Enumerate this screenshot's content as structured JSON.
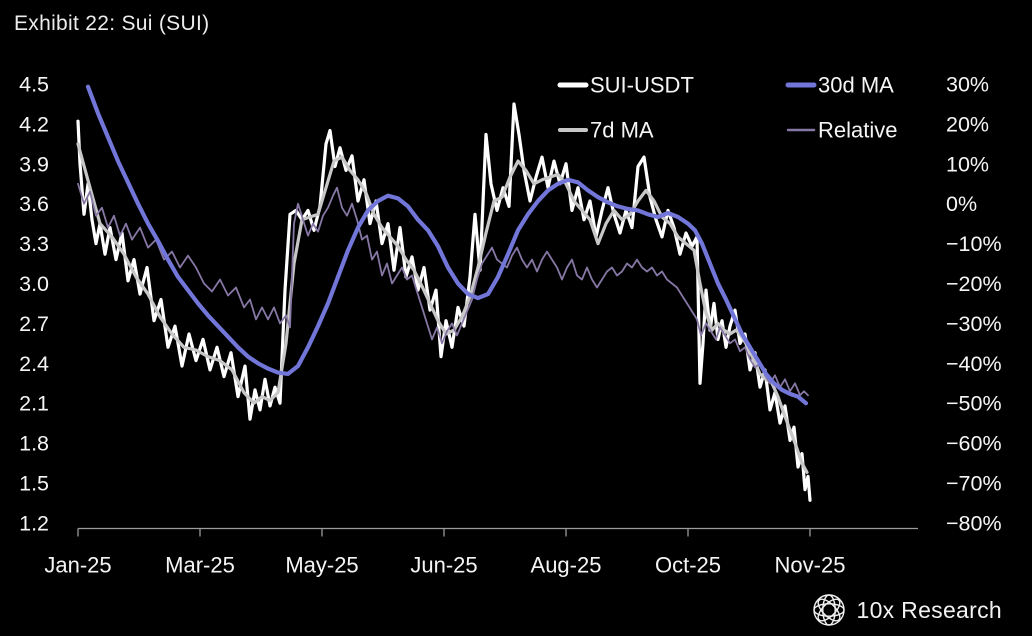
{
  "title": "Exhibit 22: Sui (SUI)",
  "footer": {
    "brand_name": "10x Research",
    "logo": "globe-wireframe-icon"
  },
  "colors": {
    "background": "#000000",
    "price_line": "#ffffff",
    "ma7_line": "#c7c7c7",
    "ma30_line": "#7276d8",
    "relative_line": "#8677a4",
    "axis": "#9b9b9b",
    "label_text": "#f5f5f5",
    "title_text": "#ececec"
  },
  "legend": [
    {
      "label": "SUI-USDT",
      "color": "#ffffff",
      "thickness": 5
    },
    {
      "label": "30d MA",
      "color": "#7276d8",
      "thickness": 5
    },
    {
      "label": "7d MA",
      "color": "#c7c7c7",
      "thickness": 4
    },
    {
      "label": "Relative",
      "color": "#8677a4",
      "thickness": 2.5
    }
  ],
  "chart_data": {
    "type": "line",
    "title": "Exhibit 22: Sui (SUI)",
    "grid": false,
    "legend_position": "top-right",
    "x_tick_labels": [
      "Jan-25",
      "Mar-25",
      "May-25",
      "Jun-25",
      "Aug-25",
      "Oct-25",
      "Nov-25"
    ],
    "left_axis": {
      "ticks": [
        "4.5",
        "4.2",
        "3.9",
        "3.6",
        "3.3",
        "3.0",
        "2.7",
        "2.4",
        "2.1",
        "1.8",
        "1.5",
        "1.2"
      ],
      "top": 4.5,
      "step": 0.3
    },
    "right_axis": {
      "ticks": [
        "30%",
        "20%",
        "10%",
        "0%",
        "−10%",
        "−20%",
        "−30%",
        "−40%",
        "−50%",
        "−60%",
        "−70%",
        "−80%"
      ],
      "top": 30,
      "step": 10
    },
    "x_span": 732,
    "series": [
      {
        "name": "SUI-USDT",
        "axis": "left",
        "color": "#ffffff",
        "width": 3.2,
        "x": [
          0,
          2,
          6,
          10,
          14,
          18,
          22,
          27,
          32,
          38,
          44,
          50,
          56,
          62,
          69,
          76,
          83,
          90,
          97,
          104,
          111,
          118,
          125,
          132,
          139,
          146,
          153,
          160,
          167,
          172,
          177,
          182,
          187,
          192,
          197,
          202,
          207,
          212,
          218,
          224,
          230,
          236,
          242,
          248,
          252,
          257,
          262,
          268,
          274,
          280,
          286,
          292,
          298,
          304,
          310,
          316,
          322,
          328,
          334,
          340,
          346,
          352,
          358,
          363,
          368,
          374,
          380,
          386,
          392,
          397,
          402,
          408,
          413,
          419,
          425,
          431,
          436,
          441,
          446,
          452,
          458,
          464,
          470,
          476,
          482,
          488,
          494,
          500,
          506,
          512,
          518,
          524,
          530,
          536,
          542,
          548,
          554,
          560,
          566,
          572,
          578,
          584,
          590,
          596,
          602,
          608,
          614,
          619,
          622,
          625,
          628,
          632,
          636,
          640,
          644,
          648,
          652,
          657,
          662,
          667,
          672,
          677,
          682,
          687,
          692,
          697,
          702,
          707,
          712,
          716,
          720,
          724,
          727,
          730,
          732
        ],
        "v": [
          4.22,
          3.9,
          3.52,
          3.75,
          3.48,
          3.3,
          3.45,
          3.22,
          3.42,
          3.18,
          3.38,
          3.02,
          3.18,
          2.92,
          3.12,
          2.72,
          2.88,
          2.52,
          2.68,
          2.38,
          2.62,
          2.42,
          2.58,
          2.35,
          2.52,
          2.3,
          2.48,
          2.15,
          2.38,
          1.98,
          2.2,
          2.05,
          2.28,
          2.08,
          2.22,
          2.1,
          2.95,
          3.52,
          3.55,
          3.48,
          3.55,
          3.4,
          3.58,
          4.05,
          4.15,
          3.88,
          4.02,
          3.85,
          3.96,
          3.62,
          3.78,
          3.45,
          3.62,
          3.3,
          3.45,
          3.1,
          3.42,
          3.05,
          3.2,
          2.95,
          3.12,
          2.8,
          2.95,
          2.45,
          2.72,
          2.52,
          2.82,
          2.68,
          3.05,
          3.52,
          3.1,
          4.12,
          3.75,
          3.55,
          3.72,
          3.58,
          4.35,
          4.12,
          3.85,
          3.62,
          3.8,
          3.95,
          3.72,
          3.92,
          3.75,
          3.9,
          3.55,
          3.72,
          3.48,
          3.62,
          3.35,
          3.55,
          3.72,
          3.52,
          3.38,
          3.55,
          3.42,
          3.88,
          3.95,
          3.65,
          3.48,
          3.35,
          3.55,
          3.42,
          3.22,
          3.38,
          3.28,
          3.35,
          2.25,
          2.55,
          2.95,
          2.65,
          2.85,
          2.58,
          2.72,
          2.52,
          2.68,
          2.8,
          2.55,
          2.62,
          2.35,
          2.48,
          2.22,
          2.35,
          2.05,
          2.18,
          1.95,
          2.08,
          1.82,
          1.92,
          1.62,
          1.72,
          1.45,
          1.55,
          1.37
        ]
      },
      {
        "name": "7d MA",
        "axis": "left",
        "color": "#c7c7c7",
        "width": 3.2,
        "x": [
          0,
          12,
          22,
          34,
          46,
          58,
          70,
          82,
          94,
          106,
          118,
          130,
          142,
          154,
          166,
          176,
          184,
          192,
          200,
          208,
          216,
          224,
          232,
          240,
          248,
          256,
          264,
          272,
          280,
          288,
          296,
          304,
          312,
          320,
          328,
          336,
          344,
          352,
          360,
          368,
          376,
          384,
          392,
          400,
          408,
          416,
          424,
          432,
          440,
          448,
          456,
          464,
          472,
          480,
          488,
          496,
          504,
          512,
          520,
          528,
          536,
          544,
          552,
          560,
          568,
          576,
          584,
          592,
          600,
          608,
          616,
          622,
          628,
          634,
          640,
          646,
          652,
          658,
          664,
          670,
          676,
          682,
          688,
          694,
          700,
          706,
          712,
          718,
          724,
          729
        ],
        "v": [
          4.05,
          3.72,
          3.45,
          3.35,
          3.22,
          3.05,
          2.92,
          2.75,
          2.62,
          2.52,
          2.5,
          2.45,
          2.42,
          2.35,
          2.18,
          2.1,
          2.15,
          2.12,
          2.18,
          2.55,
          3.15,
          3.48,
          3.5,
          3.52,
          3.72,
          3.92,
          3.95,
          3.85,
          3.78,
          3.68,
          3.52,
          3.42,
          3.35,
          3.28,
          3.18,
          3.1,
          2.98,
          2.85,
          2.72,
          2.62,
          2.65,
          2.75,
          2.9,
          3.12,
          3.38,
          3.62,
          3.65,
          3.8,
          3.92,
          3.85,
          3.75,
          3.78,
          3.8,
          3.82,
          3.75,
          3.62,
          3.55,
          3.48,
          3.3,
          3.45,
          3.55,
          3.48,
          3.52,
          3.62,
          3.7,
          3.62,
          3.5,
          3.45,
          3.35,
          3.3,
          3.25,
          3.0,
          2.78,
          2.65,
          2.7,
          2.65,
          2.62,
          2.65,
          2.6,
          2.52,
          2.42,
          2.32,
          2.28,
          2.25,
          2.15,
          2.02,
          1.9,
          1.78,
          1.65,
          1.58
        ]
      },
      {
        "name": "Relative",
        "axis": "right",
        "color": "#8677a4",
        "width": 1.8,
        "x": [
          0,
          6,
          12,
          18,
          24,
          30,
          36,
          42,
          48,
          54,
          62,
          70,
          78,
          86,
          94,
          102,
          110,
          118,
          126,
          134,
          142,
          150,
          158,
          166,
          172,
          178,
          184,
          190,
          196,
          202,
          208,
          212,
          216,
          220,
          225,
          230,
          235,
          240,
          245,
          250,
          255,
          259,
          264,
          269,
          274,
          279,
          284,
          289,
          294,
          299,
          304,
          309,
          314,
          319,
          324,
          329,
          334,
          339,
          344,
          349,
          354,
          359,
          364,
          369,
          374,
          379,
          384,
          389,
          394,
          399,
          404,
          409,
          414,
          419,
          424,
          429,
          434,
          439,
          444,
          449,
          454,
          459,
          464,
          469,
          474,
          479,
          484,
          489,
          494,
          499,
          504,
          509,
          514,
          519,
          524,
          529,
          534,
          539,
          544,
          549,
          554,
          559,
          564,
          569,
          574,
          579,
          584,
          589,
          594,
          599,
          604,
          609,
          614,
          619,
          623,
          628,
          633,
          638,
          642,
          647,
          652,
          657,
          662,
          667,
          672,
          677,
          682,
          687,
          692,
          697,
          702,
          707,
          712,
          717,
          722,
          726,
          730
        ],
        "v": [
          5,
          0,
          3,
          -3,
          -1,
          -6,
          -3,
          -8,
          -5,
          -9,
          -6,
          -11,
          -9,
          -14,
          -12,
          -16,
          -13,
          -16,
          -20,
          -22,
          -19,
          -23,
          -21,
          -26,
          -24,
          -29,
          -26,
          -29,
          -26,
          -30,
          -28,
          -31,
          -5,
          0,
          -4,
          -8,
          -5,
          -7,
          -3,
          -1,
          2,
          4,
          -1,
          -3,
          0,
          -4,
          -9,
          -8,
          -14,
          -12,
          -18,
          -15,
          -20,
          -18,
          -16,
          -19,
          -18,
          -22,
          -26,
          -30,
          -34,
          -31,
          -35,
          -32,
          -30,
          -33,
          -30,
          -27,
          -24,
          -19,
          -15,
          -13,
          -11,
          -14,
          -15,
          -16,
          -13,
          -11,
          -14,
          -16,
          -14,
          -17,
          -14,
          -12,
          -14,
          -16,
          -19,
          -16,
          -14,
          -18,
          -19,
          -16,
          -19,
          -21,
          -19,
          -17,
          -16,
          -18,
          -17,
          -15,
          -16,
          -14,
          -16,
          -17,
          -16,
          -18,
          -17,
          -19,
          -20,
          -21,
          -23,
          -25,
          -27,
          -29,
          -33,
          -30,
          -32,
          -34,
          -31,
          -33,
          -35,
          -34,
          -37,
          -36,
          -39,
          -41,
          -40,
          -43,
          -45,
          -43,
          -46,
          -44,
          -47,
          -45,
          -48,
          -47,
          -48
        ]
      },
      {
        "name": "30d MA",
        "axis": "left",
        "color": "#7276d8",
        "width": 4.2,
        "x": [
          10,
          20,
          30,
          40,
          50,
          60,
          70,
          80,
          90,
          100,
          110,
          120,
          130,
          140,
          150,
          160,
          170,
          180,
          190,
          200,
          210,
          220,
          230,
          240,
          250,
          260,
          270,
          280,
          290,
          300,
          310,
          320,
          330,
          340,
          350,
          360,
          370,
          380,
          390,
          400,
          410,
          420,
          430,
          440,
          450,
          460,
          470,
          480,
          490,
          500,
          510,
          520,
          530,
          540,
          550,
          560,
          570,
          580,
          590,
          600,
          610,
          617,
          624,
          632,
          640,
          648,
          656,
          664,
          672,
          680,
          688,
          696,
          704,
          712,
          720,
          728
        ],
        "v": [
          4.48,
          4.28,
          4.1,
          3.92,
          3.76,
          3.6,
          3.45,
          3.32,
          3.18,
          3.05,
          2.95,
          2.85,
          2.76,
          2.68,
          2.6,
          2.52,
          2.45,
          2.4,
          2.36,
          2.33,
          2.32,
          2.38,
          2.52,
          2.68,
          2.85,
          3.05,
          3.25,
          3.42,
          3.55,
          3.62,
          3.66,
          3.64,
          3.58,
          3.48,
          3.4,
          3.28,
          3.12,
          3.0,
          2.92,
          2.89,
          2.92,
          3.05,
          3.22,
          3.4,
          3.52,
          3.62,
          3.7,
          3.75,
          3.78,
          3.76,
          3.7,
          3.65,
          3.61,
          3.58,
          3.56,
          3.55,
          3.52,
          3.5,
          3.53,
          3.5,
          3.45,
          3.4,
          3.3,
          3.15,
          3.0,
          2.88,
          2.75,
          2.62,
          2.52,
          2.42,
          2.32,
          2.25,
          2.2,
          2.17,
          2.15,
          2.1
        ]
      }
    ]
  }
}
